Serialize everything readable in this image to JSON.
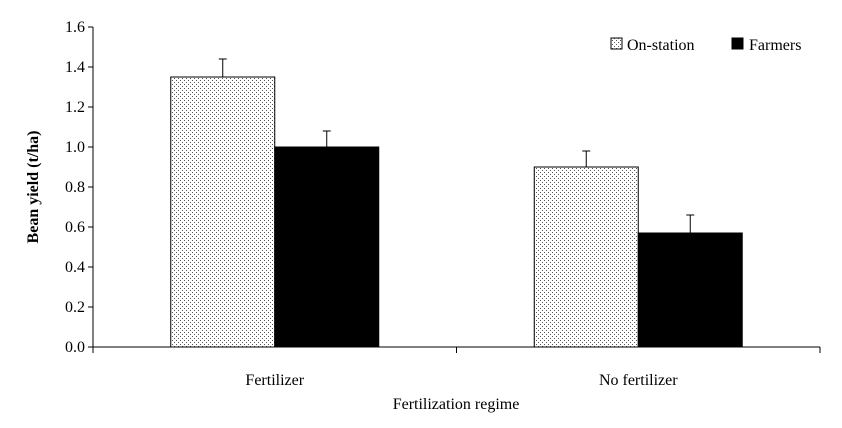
{
  "chart_data": {
    "type": "bar",
    "title": "",
    "xlabel": "Fertilization regime",
    "ylabel": "Bean yield (t/ha)",
    "categories": [
      "Fertilizer",
      "No fertilizer"
    ],
    "series": [
      {
        "name": "On-station",
        "values": [
          1.35,
          0.9
        ],
        "errors": [
          0.09,
          0.08
        ],
        "fill": "dotted"
      },
      {
        "name": "Farmers",
        "values": [
          1.0,
          0.57
        ],
        "errors": [
          0.08,
          0.09
        ],
        "fill": "#000000"
      }
    ],
    "ylim": [
      0,
      1.6
    ],
    "yticks": [
      "0.0",
      "0.2",
      "0.4",
      "0.6",
      "0.8",
      "1.0",
      "1.2",
      "1.4",
      "1.6"
    ],
    "grid": false,
    "legend_position": "top-right"
  }
}
